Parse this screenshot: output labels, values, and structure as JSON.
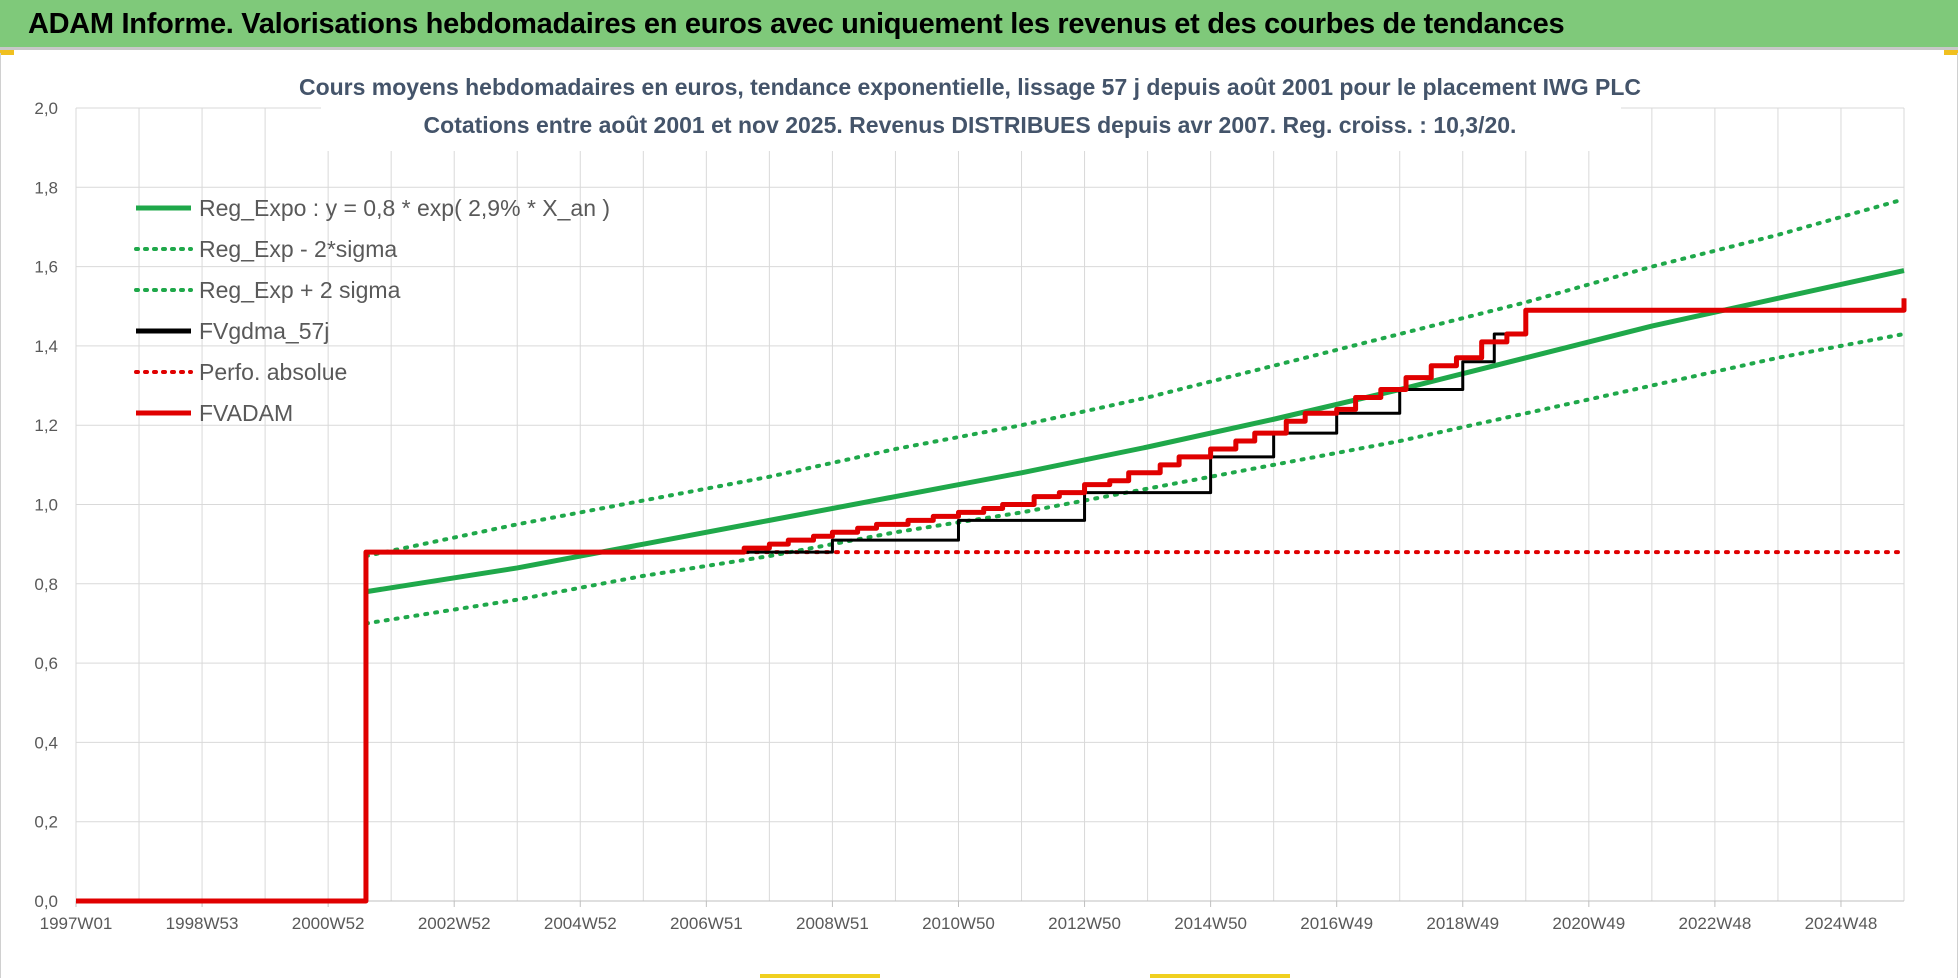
{
  "banner": {
    "title": "ADAM Informe. Valorisations hebdomadaires en euros avec uniquement les revenus et des courbes de tendances",
    "color": "#7fc97a"
  },
  "chart_data": {
    "type": "line",
    "title_line1": "Cours moyens hebdomadaires en euros, tendance exponentielle, lissage 57 j depuis août 2001 pour le placement IWG PLC",
    "title_line2": "Cotations entre août 2001 et nov 2025. Revenus DISTRIBUES depuis avr 2007. Reg. croiss. : 10,3/20.",
    "xlabel": "",
    "ylabel": "",
    "ylim": [
      0,
      2.0
    ],
    "xlim": [
      1997.0,
      2026.0
    ],
    "x_ticks": [
      {
        "x": 1997.0,
        "label": "1997W01"
      },
      {
        "x": 1999.0,
        "label": "1998W53"
      },
      {
        "x": 2001.0,
        "label": "2000W52"
      },
      {
        "x": 2003.0,
        "label": "2002W52"
      },
      {
        "x": 2005.0,
        "label": "2004W52"
      },
      {
        "x": 2007.0,
        "label": "2006W51"
      },
      {
        "x": 2009.0,
        "label": "2008W51"
      },
      {
        "x": 2011.0,
        "label": "2010W50"
      },
      {
        "x": 2013.0,
        "label": "2012W50"
      },
      {
        "x": 2015.0,
        "label": "2014W50"
      },
      {
        "x": 2017.0,
        "label": "2016W49"
      },
      {
        "x": 2019.0,
        "label": "2018W49"
      },
      {
        "x": 2021.0,
        "label": "2020W49"
      },
      {
        "x": 2023.0,
        "label": "2022W48"
      },
      {
        "x": 2025.0,
        "label": "2024W48"
      }
    ],
    "y_ticks": [
      "0,0",
      "0,2",
      "0,4",
      "0,6",
      "0,8",
      "1,0",
      "1,2",
      "1,4",
      "1,6",
      "1,8",
      "2,0"
    ],
    "grid": true,
    "legend_position": "top-left",
    "series": [
      {
        "name": "Reg_Expo : y = 0,8 * exp( 2,9% *  X_an )",
        "color": "#1fa84a",
        "style": "solid",
        "x": [
          2001.6,
          2004.0,
          2006.0,
          2008.0,
          2010.0,
          2012.0,
          2014.0,
          2016.0,
          2018.0,
          2020.0,
          2022.0,
          2024.0,
          2026.0
        ],
        "y": [
          0.78,
          0.84,
          0.9,
          0.96,
          1.02,
          1.08,
          1.145,
          1.215,
          1.29,
          1.37,
          1.45,
          1.52,
          1.59
        ]
      },
      {
        "name": "Reg_Exp - 2*sigma",
        "color": "#1fa84a",
        "style": "dotted",
        "x": [
          2001.6,
          2004.0,
          2006.0,
          2008.0,
          2010.0,
          2012.0,
          2014.0,
          2016.0,
          2018.0,
          2020.0,
          2022.0,
          2024.0,
          2026.0
        ],
        "y": [
          0.7,
          0.76,
          0.82,
          0.87,
          0.93,
          0.98,
          1.04,
          1.1,
          1.16,
          1.23,
          1.3,
          1.37,
          1.43
        ]
      },
      {
        "name": "Reg_Exp + 2 sigma",
        "color": "#1fa84a",
        "style": "dotted",
        "x": [
          2001.6,
          2004.0,
          2006.0,
          2008.0,
          2010.0,
          2012.0,
          2014.0,
          2016.0,
          2018.0,
          2020.0,
          2022.0,
          2024.0,
          2026.0
        ],
        "y": [
          0.87,
          0.95,
          1.01,
          1.07,
          1.14,
          1.2,
          1.27,
          1.35,
          1.43,
          1.51,
          1.6,
          1.68,
          1.77
        ]
      },
      {
        "name": "FVgdma_57j",
        "color": "#000000",
        "style": "solid",
        "x": [
          2001.6,
          2007.3,
          2009.0,
          2011.0,
          2013.0,
          2015.0,
          2016.0,
          2017.0,
          2018.0,
          2019.0,
          2019.5,
          2020.0,
          2024.0,
          2026.0
        ],
        "y": [
          0.88,
          0.88,
          0.91,
          0.96,
          1.03,
          1.12,
          1.18,
          1.23,
          1.29,
          1.36,
          1.43,
          1.49,
          1.49,
          1.52
        ]
      },
      {
        "name": "Perfo. absolue",
        "color": "#e00000",
        "style": "dotted",
        "x": [
          2001.6,
          2026.0
        ],
        "y": [
          0.88,
          0.88
        ]
      },
      {
        "name": "FVADAM",
        "color": "#e00000",
        "style": "solid",
        "x": [
          1997.0,
          2001.6,
          2001.6,
          2007.3,
          2007.6,
          2008.0,
          2008.3,
          2008.7,
          2009.0,
          2009.4,
          2009.7,
          2010.2,
          2010.6,
          2011.0,
          2011.4,
          2011.7,
          2012.2,
          2012.6,
          2013.0,
          2013.4,
          2013.7,
          2014.2,
          2014.5,
          2015.0,
          2015.4,
          2015.7,
          2016.2,
          2016.5,
          2017.0,
          2017.3,
          2017.7,
          2018.1,
          2018.5,
          2018.9,
          2019.3,
          2019.7,
          2020.0,
          2024.0,
          2026.0
        ],
        "y": [
          0.0,
          0.0,
          0.88,
          0.88,
          0.89,
          0.9,
          0.91,
          0.92,
          0.93,
          0.94,
          0.95,
          0.96,
          0.97,
          0.98,
          0.99,
          1.0,
          1.02,
          1.03,
          1.05,
          1.06,
          1.08,
          1.1,
          1.12,
          1.14,
          1.16,
          1.18,
          1.21,
          1.23,
          1.24,
          1.27,
          1.29,
          1.32,
          1.35,
          1.37,
          1.41,
          1.43,
          1.49,
          1.49,
          1.52
        ]
      }
    ]
  }
}
